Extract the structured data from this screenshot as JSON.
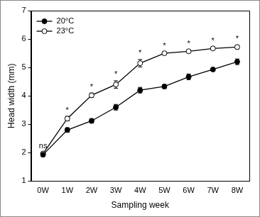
{
  "chart_data": {
    "type": "line",
    "x_label": "Sampling week",
    "y_label": "Head width (mm)",
    "categories": [
      "0W",
      "1W",
      "2W",
      "3W",
      "4W",
      "5W",
      "6W",
      "7W",
      "8W"
    ],
    "series": [
      {
        "name": "20°C",
        "color": "#000000",
        "marker": "filled_circle",
        "values": [
          1.93,
          2.8,
          3.12,
          3.6,
          4.2,
          4.33,
          4.67,
          4.93,
          5.2
        ],
        "errors": [
          0.05,
          0.08,
          0.08,
          0.1,
          0.1,
          0.07,
          0.1,
          0.05,
          0.1
        ]
      },
      {
        "name": "23°C",
        "color": "#000000",
        "marker": "open_circle",
        "values": [
          1.97,
          3.2,
          4.02,
          4.4,
          5.15,
          5.5,
          5.57,
          5.67,
          5.72
        ],
        "errors": [
          0.05,
          0.08,
          0.08,
          0.13,
          0.13,
          0.05,
          0.05,
          0.05,
          0.07
        ]
      }
    ],
    "ylim": [
      1,
      7
    ],
    "yticks": [
      1,
      2,
      3,
      4,
      5,
      6,
      7
    ],
    "grid": false,
    "legend": "upper left",
    "annotations": [
      {
        "category": "0W",
        "text": "ns"
      },
      {
        "category": "1W",
        "text": "*"
      },
      {
        "category": "2W",
        "text": "*"
      },
      {
        "category": "3W",
        "text": "*"
      },
      {
        "category": "4W",
        "text": "*"
      },
      {
        "category": "5W",
        "text": "*"
      },
      {
        "category": "6W",
        "text": "*"
      },
      {
        "category": "7W",
        "text": "*"
      },
      {
        "category": "8W",
        "text": "*"
      }
    ]
  }
}
